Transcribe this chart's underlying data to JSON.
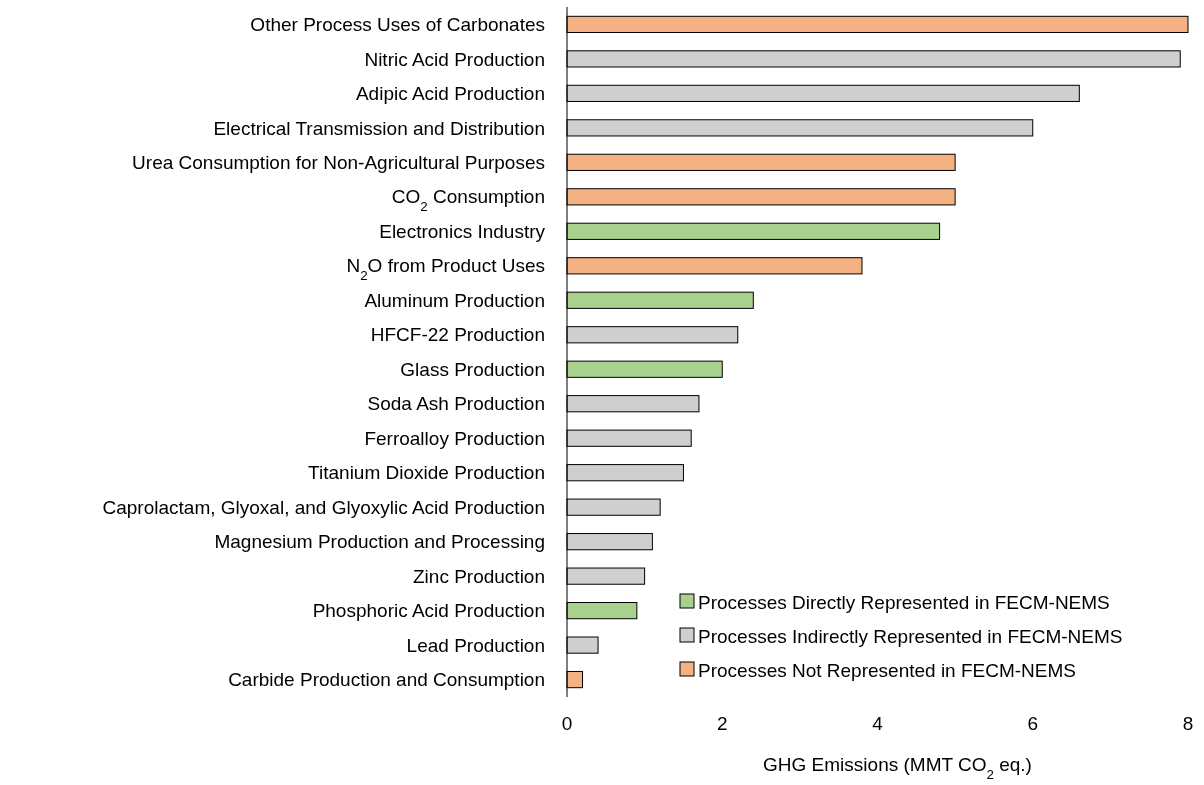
{
  "chart_data": {
    "type": "bar",
    "orientation": "horizontal",
    "xlabel": "GHG Emissions (MMT CO$_{2}$ eq.)",
    "categories": [
      "Other Process Uses of Carbonates",
      "Nitric Acid Production",
      "Adipic Acid Production",
      "Electrical Transmission and Distribution",
      "Urea Consumption for Non-Agricultural Purposes",
      "CO$_{2}$ Consumption",
      "Electronics Industry",
      "N$_{2}$O from Product Uses",
      "Aluminum Production",
      "HFCF-22 Production",
      "Glass Production",
      "Soda Ash Production",
      "Ferroalloy Production",
      "Titanium Dioxide Production",
      "Caprolactam, Glyoxal, and Glyoxylic Acid Production",
      "Magnesium Production and Processing",
      "Zinc Production",
      "Phosphoric Acid Production",
      "Lead Production",
      "Carbide Production and Consumption"
    ],
    "series": [
      {
        "name": "Processes Directly Represented in FECM-NEMS",
        "color": "#a9d18e",
        "values": [
          null,
          null,
          null,
          null,
          null,
          null,
          4.8,
          null,
          2.4,
          null,
          2.0,
          null,
          null,
          null,
          null,
          null,
          null,
          0.9,
          null,
          null
        ]
      },
      {
        "name": "Processes Indirectly Represented in FECM-NEMS",
        "color": "#d0cece",
        "values": [
          null,
          7.9,
          6.6,
          6.0,
          null,
          null,
          null,
          null,
          null,
          2.2,
          null,
          1.7,
          1.6,
          1.5,
          1.2,
          1.1,
          1.0,
          null,
          0.4,
          null
        ]
      },
      {
        "name": "Processes Not Represented in FECM-NEMS",
        "color": "#f4b183",
        "values": [
          8.0,
          null,
          null,
          null,
          5.0,
          5.0,
          null,
          3.8,
          null,
          null,
          null,
          null,
          null,
          null,
          null,
          null,
          null,
          null,
          null,
          0.2
        ]
      }
    ],
    "xlim": [
      0,
      8
    ],
    "xticks": [
      0,
      2,
      4,
      6,
      8
    ],
    "legend": "bottom right",
    "grid": false
  }
}
